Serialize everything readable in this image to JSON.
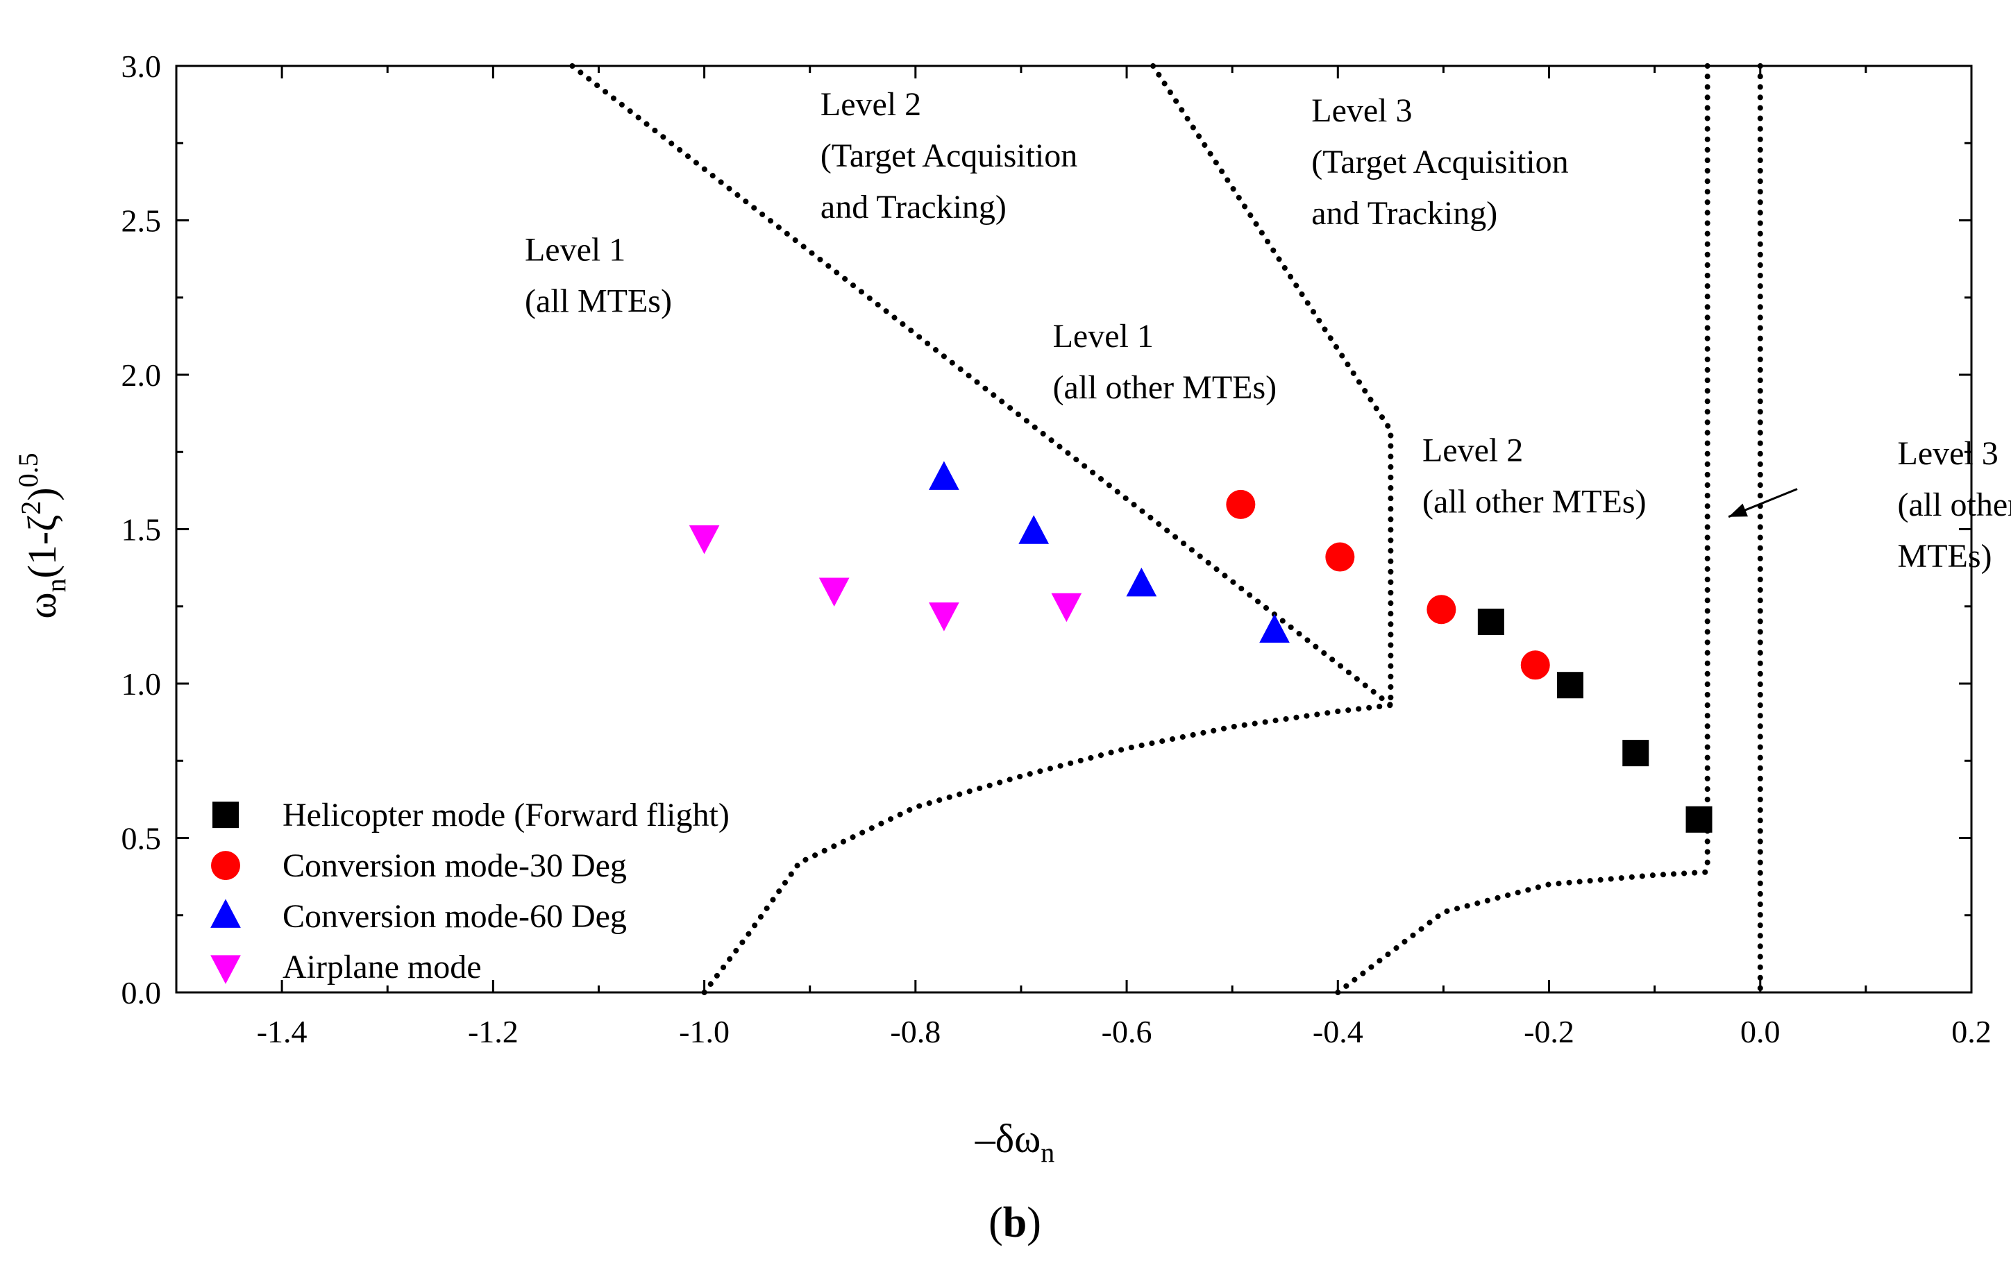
{
  "chart_data": {
    "type": "scatter",
    "title": "",
    "panel_label": "b",
    "xlabel": {
      "prefix": "–δω",
      "sub": "n"
    },
    "ylabel": {
      "omega": "ω",
      "sub": "n",
      "body": "(1-ζ",
      "sq": "2",
      "close": ")",
      "pow": "0.5"
    },
    "xlim": [
      -1.5,
      0.2
    ],
    "ylim": [
      0.0,
      3.0
    ],
    "xticks": [
      -1.4,
      -1.2,
      -1.0,
      -0.8,
      -0.6,
      -0.4,
      -0.2,
      0.0,
      0.2
    ],
    "xtick_labels": [
      "-1.4",
      "-1.2",
      "-1.0",
      "-0.8",
      "-0.6",
      "-0.4",
      "-0.2",
      "0.0",
      "0.2"
    ],
    "yticks": [
      0.0,
      0.5,
      1.0,
      1.5,
      2.0,
      2.5,
      3.0
    ],
    "ytick_labels": [
      "0.0",
      "0.5",
      "1.0",
      "1.5",
      "2.0",
      "2.5",
      "3.0"
    ],
    "legend_position": "bottom-left",
    "series": [
      {
        "name": "Helicopter mode (Forward flight)",
        "marker": "square",
        "color": "#000000",
        "points": [
          [
            -0.255,
            1.2
          ],
          [
            -0.18,
            0.995
          ],
          [
            -0.118,
            0.775
          ],
          [
            -0.058,
            0.56
          ]
        ]
      },
      {
        "name": "Conversion mode-30 Deg",
        "marker": "circle",
        "color": "#ff0000",
        "points": [
          [
            -0.492,
            1.58
          ],
          [
            -0.398,
            1.41
          ],
          [
            -0.302,
            1.24
          ],
          [
            -0.213,
            1.06
          ]
        ]
      },
      {
        "name": "Conversion mode-60 Deg",
        "marker": "triangle-up",
        "color": "#0000ff",
        "points": [
          [
            -0.773,
            1.665
          ],
          [
            -0.688,
            1.49
          ],
          [
            -0.586,
            1.32
          ],
          [
            -0.46,
            1.17
          ]
        ]
      },
      {
        "name": "Airplane mode",
        "marker": "triangle-down",
        "color": "#ff00ff",
        "points": [
          [
            -1.0,
            1.475
          ],
          [
            -0.877,
            1.305
          ],
          [
            -0.773,
            1.225
          ],
          [
            -0.657,
            1.255
          ]
        ]
      }
    ],
    "boundaries": [
      {
        "name": "level1-all-mtes-boundary",
        "points": [
          [
            -1.125,
            3.0
          ],
          [
            -0.35,
            0.93
          ]
        ]
      },
      {
        "name": "level1-level2-lower-boundary",
        "points": [
          [
            -1.0,
            0.0
          ],
          [
            -0.96,
            0.18
          ],
          [
            -0.91,
            0.42
          ],
          [
            -0.8,
            0.6
          ],
          [
            -0.7,
            0.7
          ],
          [
            -0.6,
            0.79
          ],
          [
            -0.5,
            0.86
          ],
          [
            -0.4,
            0.91
          ],
          [
            -0.35,
            0.93
          ]
        ]
      },
      {
        "name": "level2-target-acquisition-boundary",
        "points": [
          [
            -0.575,
            3.0
          ],
          [
            -0.35,
            1.82
          ],
          [
            -0.35,
            0.93
          ]
        ]
      },
      {
        "name": "level2-level3-lower-boundary",
        "points": [
          [
            -0.4,
            0.0
          ],
          [
            -0.3,
            0.26
          ],
          [
            -0.2,
            0.35
          ],
          [
            -0.1,
            0.38
          ],
          [
            -0.05,
            0.39
          ]
        ]
      },
      {
        "name": "level3-target-acquisition-boundary",
        "points": [
          [
            -0.05,
            3.0
          ],
          [
            -0.05,
            0.39
          ]
        ]
      },
      {
        "name": "stability-boundary",
        "points": [
          [
            0.0,
            3.0
          ],
          [
            0.0,
            0.0
          ]
        ]
      }
    ],
    "annotations": [
      {
        "name": "level1-all-mtes",
        "lines": [
          "Level 1",
          "(all MTEs)"
        ],
        "x": -1.17,
        "y": 2.37
      },
      {
        "name": "level2-target-acquisition",
        "lines": [
          "Level 2",
          "(Target Acquisition",
          "and Tracking)"
        ],
        "x": -0.89,
        "y": 2.84
      },
      {
        "name": "level1-all-other-mtes",
        "lines": [
          "Level 1",
          "(all other MTEs)"
        ],
        "x": -0.67,
        "y": 2.09
      },
      {
        "name": "level3-target-acquisition",
        "lines": [
          "Level 3",
          "(Target Acquisition",
          "and Tracking)"
        ],
        "x": -0.425,
        "y": 2.82
      },
      {
        "name": "level2-all-other-mtes",
        "lines": [
          "Level 2",
          "(all other MTEs)"
        ],
        "x": -0.32,
        "y": 1.72
      },
      {
        "name": "level3-all-other-mtes",
        "lines": [
          "Level 3",
          "(all other",
          "MTEs)"
        ],
        "x": 0.13,
        "y": 1.71
      }
    ],
    "arrow": {
      "from": [
        0.035,
        1.63
      ],
      "to": [
        -0.03,
        1.54
      ]
    }
  }
}
